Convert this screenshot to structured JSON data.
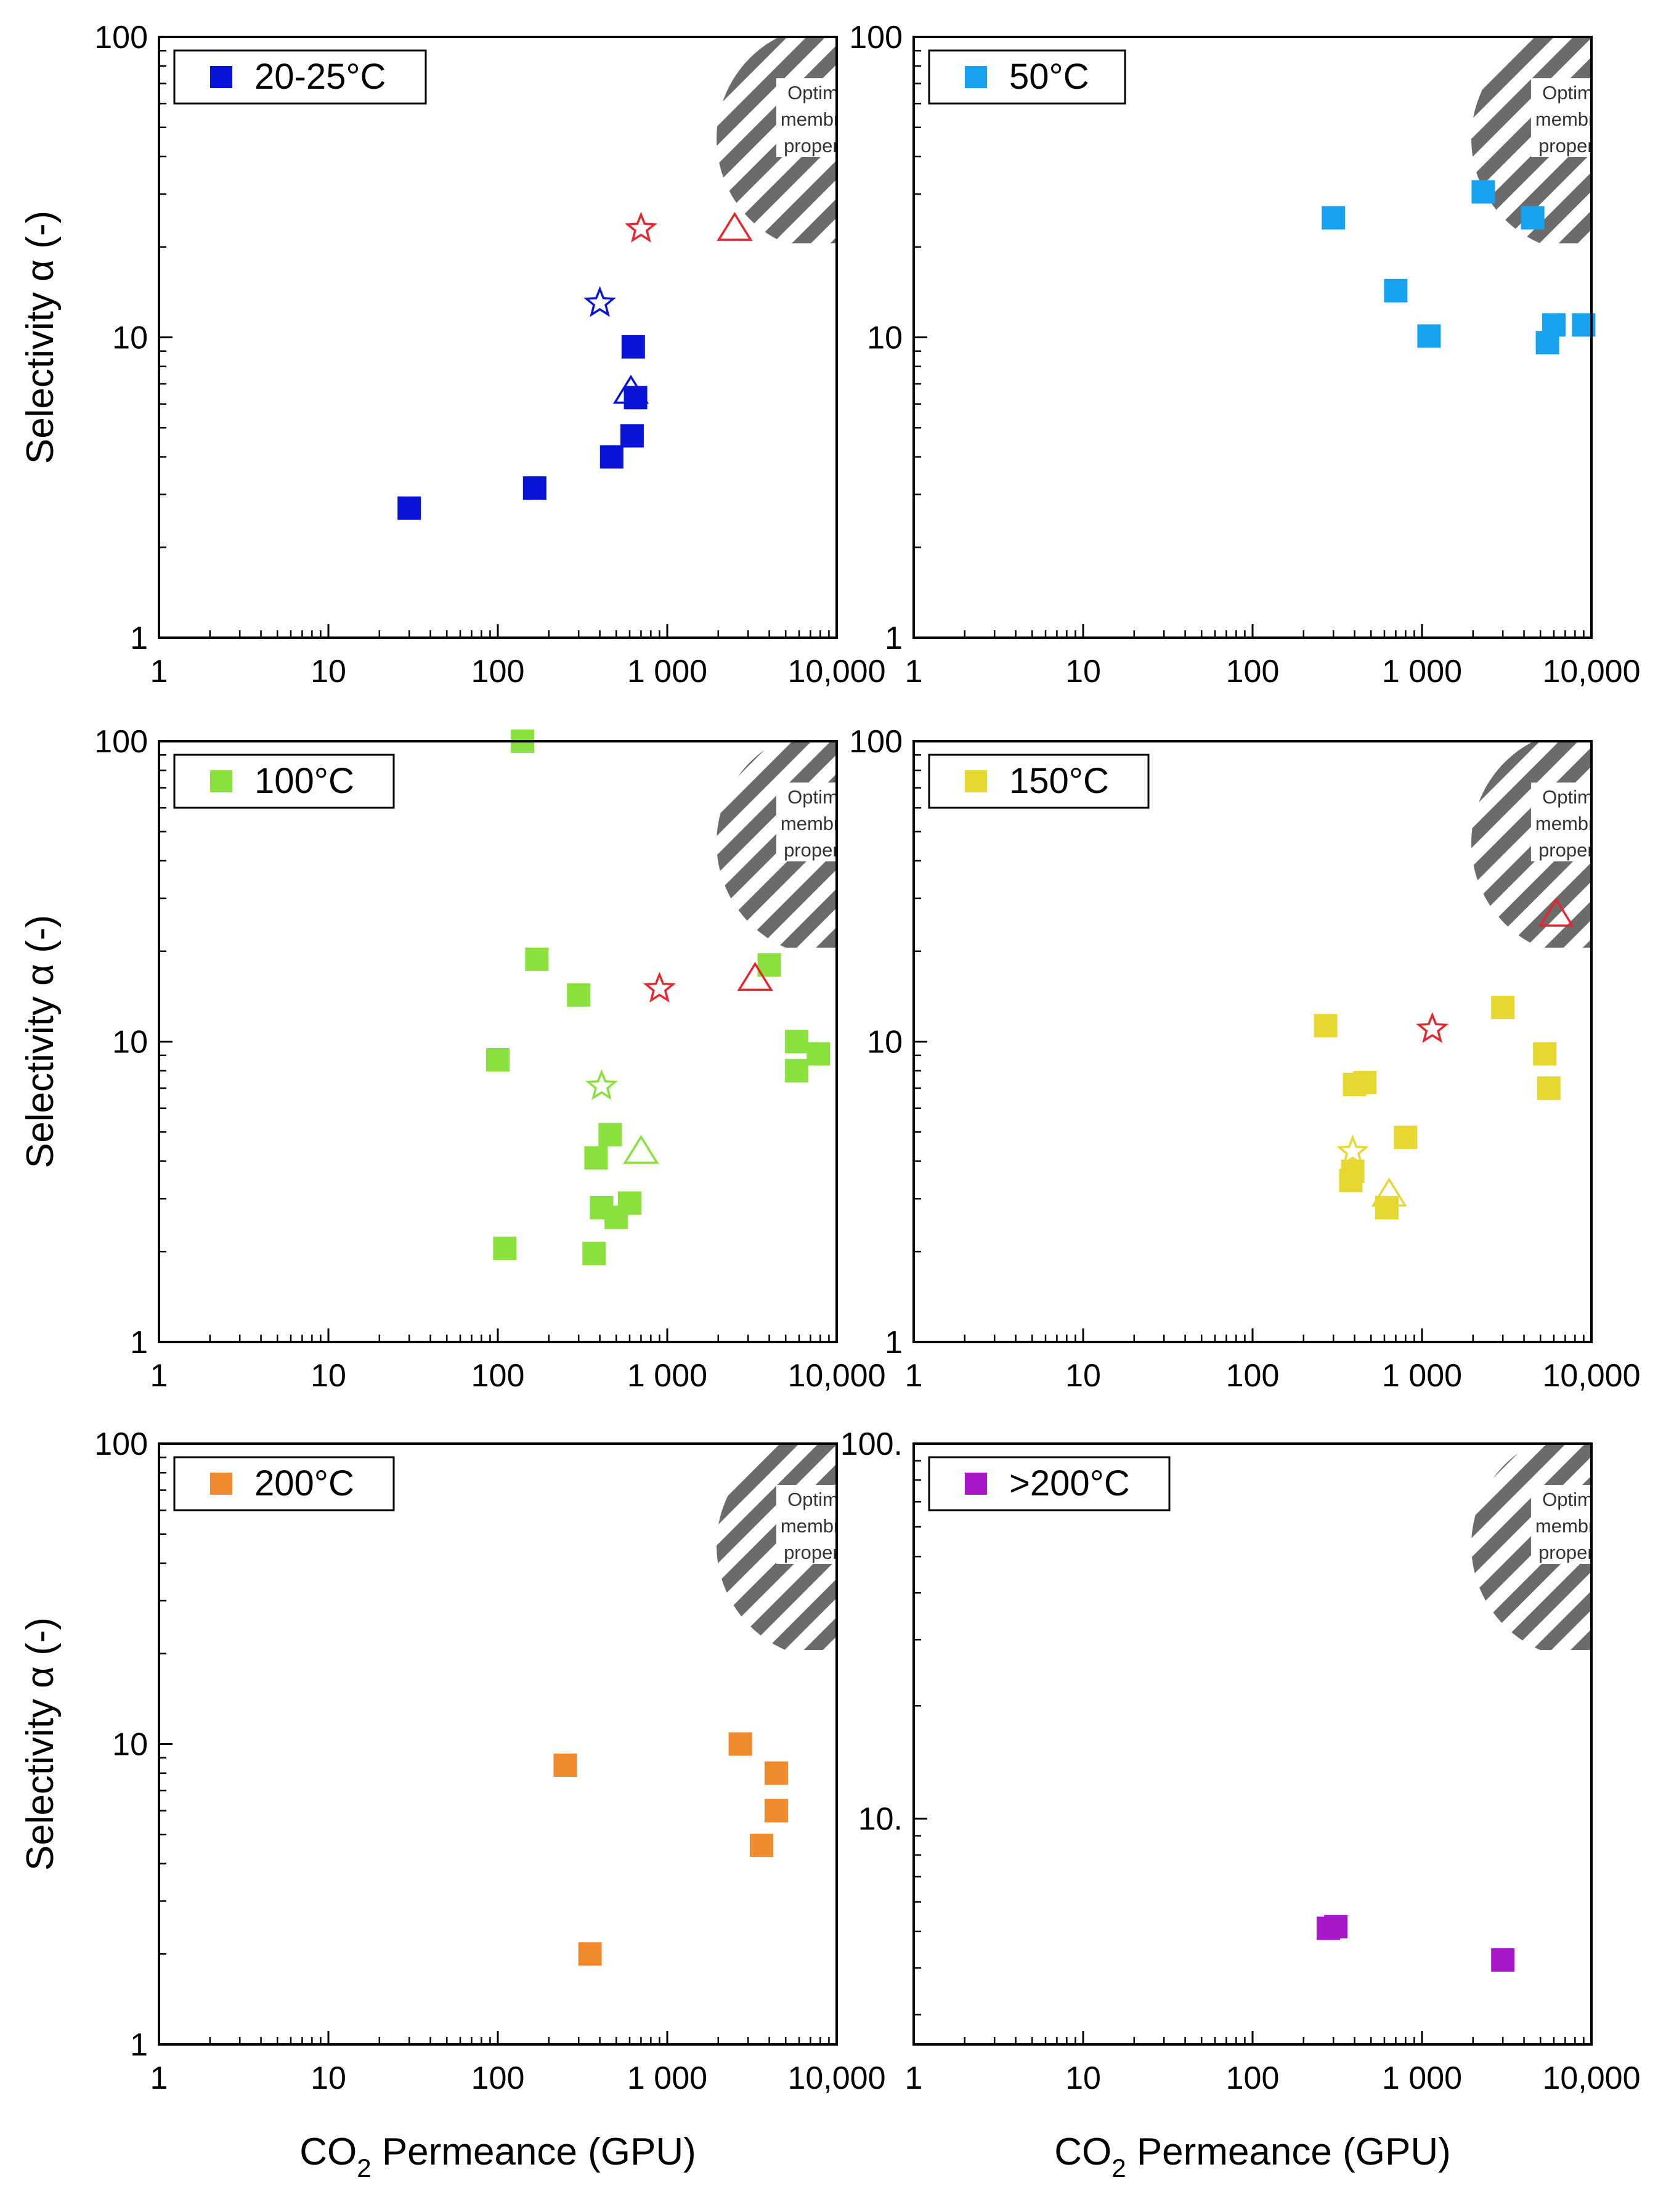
{
  "figure": {
    "ylabel": "Selectivity α (-)",
    "xlabel_prefix": "CO",
    "xlabel_sub": "2",
    "xlabel_suffix": " Permeance (GPU)",
    "optimum_lines": [
      "Optimum",
      "membrane",
      "properties"
    ]
  },
  "colors": {
    "p20": "#0a14d8",
    "p50": "#16a2ef",
    "p100": "#8ae03c",
    "p150": "#e6d830",
    "p200": "#f08a2e",
    "p250": "#a818c8",
    "red": "#e8242c",
    "hatch": "#6b6b6b"
  },
  "chart_data": [
    {
      "type": "scatter",
      "title": "20-25°C",
      "xscale": "log",
      "yscale": "log",
      "xlim": [
        1,
        10000
      ],
      "ylim": [
        1,
        100
      ],
      "xticks": [
        "1",
        "10",
        "100",
        "1 000",
        "10,000"
      ],
      "yticks": [
        "1",
        "10",
        "100"
      ],
      "series": [
        {
          "name": "20-25°C",
          "marker": "square",
          "color": "p20",
          "points": [
            [
              30,
              2.7
            ],
            [
              165,
              3.15
            ],
            [
              470,
              4.0
            ],
            [
              620,
              4.7
            ],
            [
              650,
              6.3
            ],
            [
              630,
              9.3
            ]
          ]
        },
        {
          "name": "star",
          "marker": "star",
          "color": "p20",
          "points": [
            [
              400,
              13
            ]
          ]
        },
        {
          "name": "triangle",
          "marker": "triangle",
          "color": "p20",
          "points": [
            [
              610,
              6.6
            ]
          ]
        },
        {
          "name": "star-red",
          "marker": "star",
          "color": "red",
          "points": [
            [
              700,
              23
            ]
          ]
        },
        {
          "name": "triangle-red",
          "marker": "triangle",
          "color": "red",
          "points": [
            [
              2500,
              23
            ]
          ]
        }
      ]
    },
    {
      "type": "scatter",
      "title": "50°C",
      "xscale": "log",
      "yscale": "log",
      "xlim": [
        1,
        10000
      ],
      "ylim": [
        1,
        100
      ],
      "xticks": [
        "1",
        "10",
        "100",
        "1 000",
        "10,000"
      ],
      "yticks": [
        "1",
        "10",
        "100"
      ],
      "series": [
        {
          "name": "50°C",
          "marker": "square",
          "color": "p50",
          "points": [
            [
              300,
              25
            ],
            [
              700,
              14.3
            ],
            [
              1100,
              10.1
            ],
            [
              2300,
              30.5
            ],
            [
              4500,
              25
            ],
            [
              5500,
              9.6
            ],
            [
              6000,
              11
            ],
            [
              9000,
              11
            ]
          ]
        }
      ]
    },
    {
      "type": "scatter",
      "title": "100°C",
      "xscale": "log",
      "yscale": "log",
      "xlim": [
        1,
        10000
      ],
      "ylim": [
        1,
        100
      ],
      "xticks": [
        "1",
        "10",
        "100",
        "1 000",
        "10,000"
      ],
      "yticks": [
        "1",
        "10",
        "100"
      ],
      "series": [
        {
          "name": "100°C",
          "marker": "square",
          "color": "p100",
          "points": [
            [
              140,
              100
            ],
            [
              170,
              18.8
            ],
            [
              300,
              14.3
            ],
            [
              100,
              8.7
            ],
            [
              110,
              2.05
            ],
            [
              370,
              1.97
            ],
            [
              380,
              4.1
            ],
            [
              460,
              4.9
            ],
            [
              410,
              2.8
            ],
            [
              500,
              2.6
            ],
            [
              600,
              2.9
            ],
            [
              4000,
              18
            ],
            [
              5800,
              10
            ],
            [
              5800,
              8.0
            ],
            [
              7800,
              9.1
            ]
          ]
        },
        {
          "name": "star",
          "marker": "star",
          "color": "p100",
          "points": [
            [
              410,
              7.1
            ]
          ]
        },
        {
          "name": "triangle",
          "marker": "triangle",
          "color": "p100",
          "points": [
            [
              700,
              4.3
            ]
          ]
        },
        {
          "name": "star-red",
          "marker": "star",
          "color": "red",
          "points": [
            [
              900,
              15
            ]
          ]
        },
        {
          "name": "triangle-red",
          "marker": "triangle",
          "color": "red",
          "points": [
            [
              3300,
              16.2
            ]
          ]
        }
      ]
    },
    {
      "type": "scatter",
      "title": "150°C",
      "xscale": "log",
      "yscale": "log",
      "xlim": [
        1,
        10000
      ],
      "ylim": [
        1,
        100
      ],
      "xticks": [
        "1",
        "10",
        "100",
        "1 000",
        "10,000"
      ],
      "yticks": [
        "1",
        "10",
        "100"
      ],
      "series": [
        {
          "name": "150°C",
          "marker": "square",
          "color": "p150",
          "points": [
            [
              270,
              11.3
            ],
            [
              400,
              7.2
            ],
            [
              460,
              7.3
            ],
            [
              390,
              3.7
            ],
            [
              380,
              3.45
            ],
            [
              620,
              2.8
            ],
            [
              800,
              4.8
            ],
            [
              3000,
              13
            ],
            [
              5300,
              9.1
            ],
            [
              5600,
              7.0
            ]
          ]
        },
        {
          "name": "star",
          "marker": "star",
          "color": "p150",
          "points": [
            [
              390,
              4.3
            ]
          ]
        },
        {
          "name": "triangle",
          "marker": "triangle",
          "color": "p150",
          "points": [
            [
              640,
              3.1
            ]
          ]
        },
        {
          "name": "star-red",
          "marker": "star",
          "color": "red",
          "points": [
            [
              1150,
              11
            ]
          ]
        },
        {
          "name": "triangle-red",
          "marker": "triangle",
          "color": "red",
          "points": [
            [
              6200,
              26.5
            ]
          ]
        }
      ]
    },
    {
      "type": "scatter",
      "title": "200°C",
      "xscale": "log",
      "yscale": "log",
      "xlim": [
        1,
        10000
      ],
      "ylim": [
        1,
        100
      ],
      "xticks": [
        "1",
        "10",
        "100",
        "1 000",
        "10,000"
      ],
      "yticks": [
        "1",
        "10",
        "100"
      ],
      "series": [
        {
          "name": "200°C",
          "marker": "square",
          "color": "p200",
          "points": [
            [
              250,
              8.5
            ],
            [
              350,
              2.0
            ],
            [
              2700,
              10
            ],
            [
              3600,
              4.6
            ],
            [
              4400,
              8.0
            ],
            [
              4400,
              6.0
            ]
          ]
        }
      ]
    },
    {
      "type": "scatter",
      "title": ">200°C",
      "xscale": "log",
      "yscale": "log",
      "xlim": [
        1,
        10000
      ],
      "ylim": [
        2.5,
        100
      ],
      "xticks": [
        "1",
        "10",
        "100",
        "1 000",
        "10,000"
      ],
      "yticks": [
        "10.",
        "100."
      ],
      "series": [
        {
          "name": ">200°C",
          "marker": "square",
          "color": "p250",
          "points": [
            [
              280,
              5.1
            ],
            [
              310,
              5.15
            ],
            [
              3000,
              4.2
            ]
          ]
        }
      ]
    }
  ]
}
